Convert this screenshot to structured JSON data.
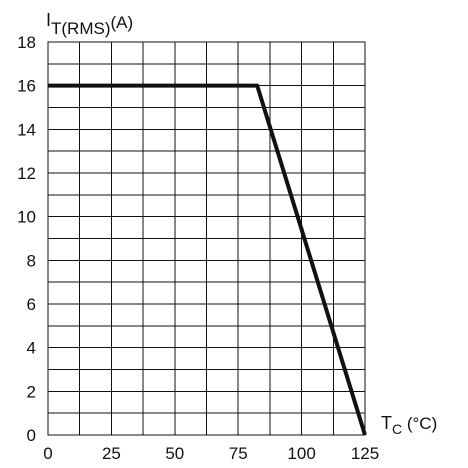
{
  "chart_data": {
    "type": "line",
    "xlabel_main": "T",
    "xlabel_sub": "C",
    "xlabel_unit": " (°C)",
    "ylabel_main": "I",
    "ylabel_sub": "T(RMS)",
    "ylabel_unit": "(A)",
    "xlim": [
      0,
      125
    ],
    "ylim": [
      0,
      18
    ],
    "x_ticks": [
      0,
      25,
      50,
      75,
      100,
      125
    ],
    "y_ticks": [
      0,
      2,
      4,
      6,
      8,
      10,
      12,
      14,
      16,
      18
    ],
    "grid": true,
    "x_grid_step": 12.5,
    "y_grid_step": 1,
    "series": [
      {
        "x": [
          0,
          82.5,
          125
        ],
        "y": [
          16,
          16,
          0
        ]
      }
    ]
  }
}
